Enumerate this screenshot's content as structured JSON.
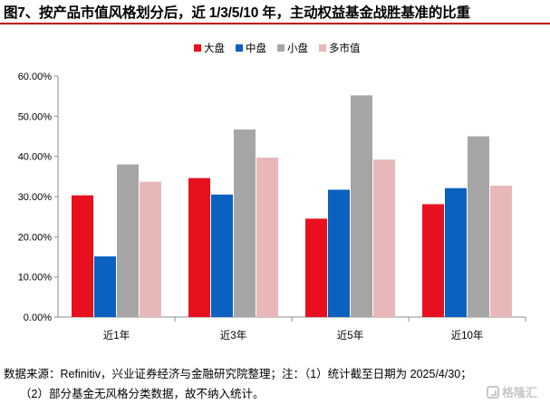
{
  "title": "图7、按产品市值风格划分后，近 1/3/5/10 年，主动权益基金战胜基准的比重",
  "footnote_line1": "数据来源：Refinitiv，兴业证券经济与金融研究院整理；注：（1）统计截至日期为 2025/4/30；",
  "footnote_line2": "（2）部分基金无风格分类数据，故不纳入统计。",
  "watermark": "格隆汇",
  "chart_data": {
    "type": "bar",
    "categories": [
      "近1年",
      "近3年",
      "近5年",
      "近10年"
    ],
    "series": [
      {
        "name": "大盘",
        "color": "#e8101e",
        "values": [
          30.3,
          34.6,
          24.5,
          28.1
        ]
      },
      {
        "name": "中盘",
        "color": "#0a61bf",
        "values": [
          15.1,
          30.5,
          31.7,
          32.1
        ]
      },
      {
        "name": "小盘",
        "color": "#a6a6a6",
        "values": [
          38.0,
          46.7,
          55.2,
          45.0
        ]
      },
      {
        "name": "多市值",
        "color": "#e8b8b8",
        "values": [
          33.7,
          39.7,
          39.2,
          32.7
        ]
      }
    ],
    "ylim": [
      0,
      60
    ],
    "yticks": [
      "0.00%",
      "10.00%",
      "20.00%",
      "30.00%",
      "40.00%",
      "50.00%",
      "60.00%"
    ],
    "grid": false,
    "legend_position": "top-center"
  }
}
